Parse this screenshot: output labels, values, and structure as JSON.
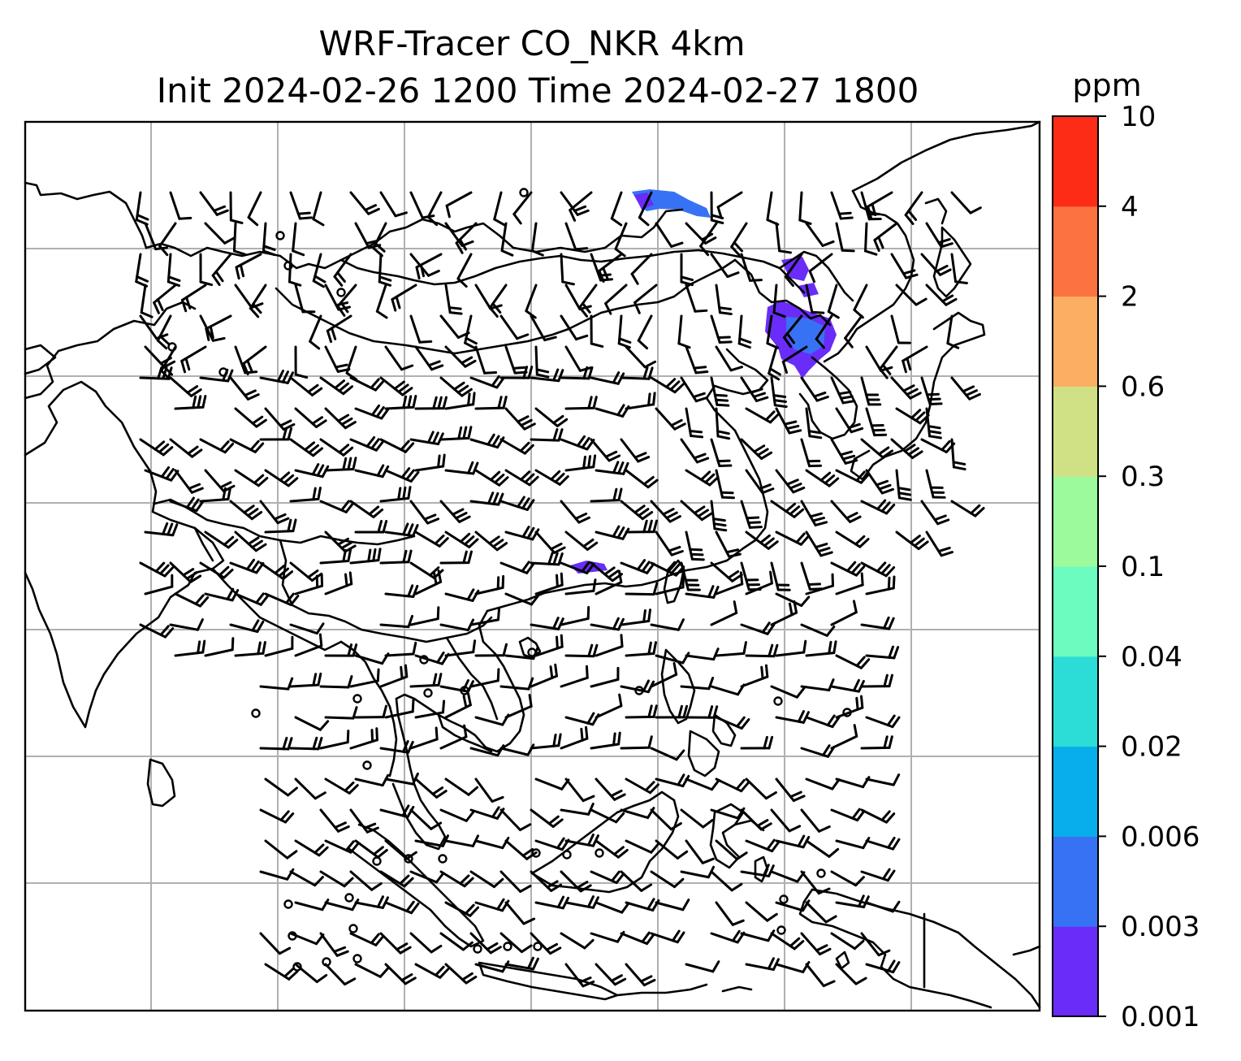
{
  "figure": {
    "title_line1": "WRF-Tracer CO_NKR 4km",
    "title_line2": "Init 2024-02-26 1200 Time 2024-02-27 1800"
  },
  "colorbar": {
    "unit": "ppm",
    "levels": [
      "0.001",
      "0.003",
      "0.006",
      "0.02",
      "0.04",
      "0.1",
      "0.3",
      "0.6",
      "2",
      "4",
      "10"
    ],
    "colors": [
      "#6a2cf8",
      "#3872f4",
      "#08aeec",
      "#2cdcd6",
      "#6cfcc0",
      "#9cfa9c",
      "#d0e084",
      "#fcae62",
      "#fc7240",
      "#fc2c16"
    ]
  },
  "map": {
    "gridlines": true,
    "coastlines": true,
    "wind_barbs": true,
    "tracer_patches": [
      "north-boundary",
      "northeast-china",
      "south-china-small"
    ]
  }
}
